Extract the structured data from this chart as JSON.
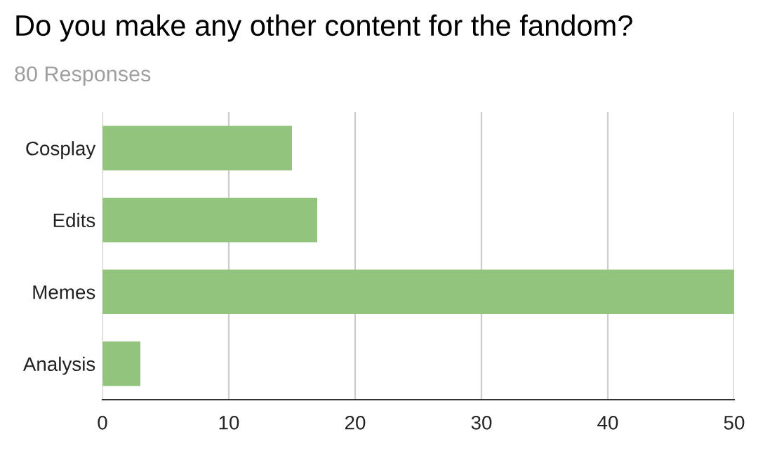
{
  "chart_data": {
    "type": "bar",
    "orientation": "horizontal",
    "title": "Do you make any other content for the fandom?",
    "subtitle": "80 Responses",
    "categories": [
      "Cosplay",
      "Edits",
      "Memes",
      "Analysis"
    ],
    "values": [
      15,
      17,
      50,
      3
    ],
    "color": "#93c47d",
    "xlim": [
      0,
      50
    ],
    "xticks": [
      0,
      10,
      20,
      30,
      40,
      50
    ],
    "grid": "x"
  }
}
